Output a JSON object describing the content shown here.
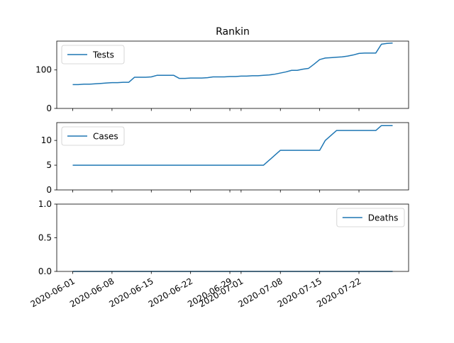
{
  "chart_data": {
    "type": "line",
    "title": "Rankin",
    "line_color": "#1f77b4",
    "x": [
      "2020-06-01",
      "2020-06-02",
      "2020-06-03",
      "2020-06-04",
      "2020-06-05",
      "2020-06-06",
      "2020-06-07",
      "2020-06-08",
      "2020-06-09",
      "2020-06-10",
      "2020-06-11",
      "2020-06-12",
      "2020-06-13",
      "2020-06-14",
      "2020-06-15",
      "2020-06-16",
      "2020-06-17",
      "2020-06-18",
      "2020-06-19",
      "2020-06-20",
      "2020-06-21",
      "2020-06-22",
      "2020-06-23",
      "2020-06-24",
      "2020-06-25",
      "2020-06-26",
      "2020-06-27",
      "2020-06-28",
      "2020-06-29",
      "2020-06-30",
      "2020-07-01",
      "2020-07-02",
      "2020-07-03",
      "2020-07-04",
      "2020-07-05",
      "2020-07-06",
      "2020-07-07",
      "2020-07-08",
      "2020-07-09",
      "2020-07-10",
      "2020-07-11",
      "2020-07-12",
      "2020-07-13",
      "2020-07-14",
      "2020-07-15",
      "2020-07-16",
      "2020-07-17",
      "2020-07-18",
      "2020-07-19",
      "2020-07-20",
      "2020-07-21",
      "2020-07-22",
      "2020-07-23",
      "2020-07-24",
      "2020-07-25",
      "2020-07-26",
      "2020-07-27",
      "2020-07-28"
    ],
    "x_ticks": [
      "2020-06-01",
      "2020-06-08",
      "2020-06-15",
      "2020-06-22",
      "2020-06-29",
      "2020-07-01",
      "2020-07-08",
      "2020-07-15",
      "2020-07-22"
    ],
    "panels": [
      {
        "legend": "Tests",
        "legend_loc": "upper left",
        "ylim": [
          0,
          175
        ],
        "yticks": [
          0,
          100
        ],
        "values": [
          62,
          62,
          63,
          63,
          64,
          65,
          66,
          67,
          67,
          68,
          68,
          81,
          81,
          81,
          82,
          86,
          86,
          86,
          86,
          78,
          78,
          79,
          79,
          79,
          80,
          82,
          82,
          82,
          83,
          83,
          84,
          84,
          85,
          85,
          86,
          87,
          89,
          92,
          95,
          99,
          99,
          102,
          104,
          115,
          127,
          131,
          132,
          133,
          134,
          136,
          139,
          143,
          144,
          144,
          144,
          167,
          169,
          170
        ]
      },
      {
        "legend": "Cases",
        "legend_loc": "upper left",
        "ylim": [
          0,
          13.6
        ],
        "yticks": [
          0,
          5,
          10
        ],
        "values": [
          5,
          5,
          5,
          5,
          5,
          5,
          5,
          5,
          5,
          5,
          5,
          5,
          5,
          5,
          5,
          5,
          5,
          5,
          5,
          5,
          5,
          5,
          5,
          5,
          5,
          5,
          5,
          5,
          5,
          5,
          5,
          5,
          5,
          5,
          5,
          6,
          7,
          8,
          8,
          8,
          8,
          8,
          8,
          8,
          8,
          10,
          11,
          12,
          12,
          12,
          12,
          12,
          12,
          12,
          12,
          13,
          13,
          13
        ]
      },
      {
        "legend": "Deaths",
        "legend_loc": "upper right",
        "ylim": [
          0,
          1.0
        ],
        "yticks": [
          "0.0",
          "0.5",
          "1.0"
        ],
        "values": [
          0,
          0,
          0,
          0,
          0,
          0,
          0,
          0,
          0,
          0,
          0,
          0,
          0,
          0,
          0,
          0,
          0,
          0,
          0,
          0,
          0,
          0,
          0,
          0,
          0,
          0,
          0,
          0,
          0,
          0,
          0,
          0,
          0,
          0,
          0,
          0,
          0,
          0,
          0,
          0,
          0,
          0,
          0,
          0,
          0,
          0,
          0,
          0,
          0,
          0,
          0,
          0,
          0,
          0,
          0,
          0,
          0,
          0
        ]
      }
    ]
  }
}
